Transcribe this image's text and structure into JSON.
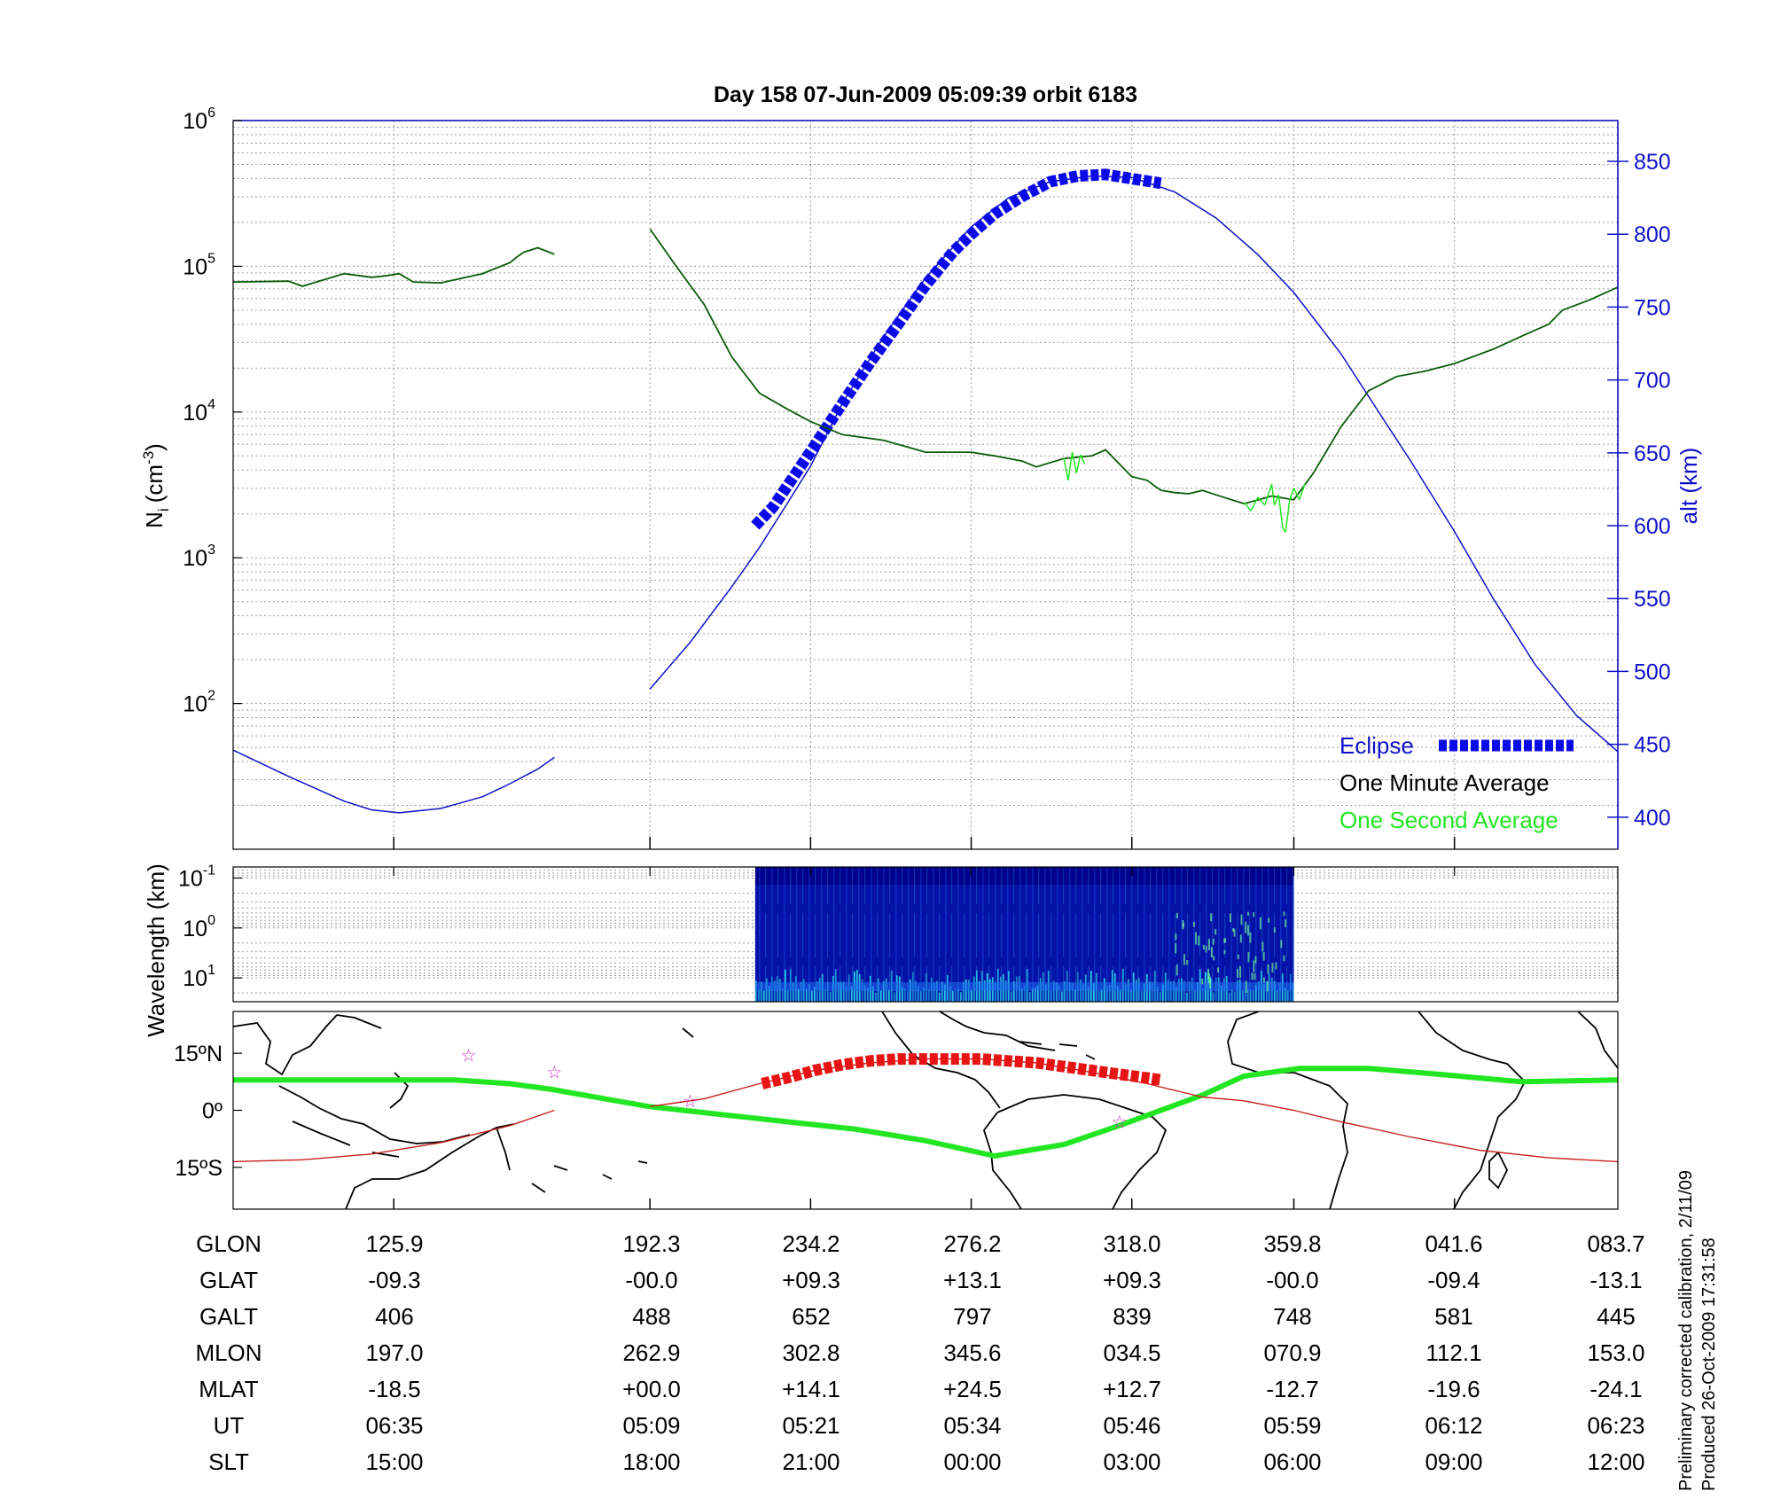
{
  "title": "Day 158  07-Jun-2009 05:09:39   orbit 6183",
  "footer": {
    "line1": "Preliminary corrected calibration, 2/11/09",
    "line2": "Produced 26-Oct-2009 17:31:58"
  },
  "colors": {
    "alt": "#1010c8",
    "eclipse": "#0a0ae6",
    "minute": "#0a5a0a",
    "second": "#22e622",
    "ground_track": "#c81e1e",
    "track_eclipse": "#e61414",
    "star": "#c832c8"
  },
  "chart_data": [
    {
      "type": "line",
      "id": "density_altitude",
      "ylabel_base": "N",
      "ylabel_sub": "i",
      "ylabel_unit": "(cm",
      "ylabel_sup": "-3",
      "y2label": "alt (km)",
      "y_scale": "log",
      "ylim": [
        10,
        1000000
      ],
      "y_ticks": [
        {
          "base": "10",
          "exp": "2",
          "value": 100
        },
        {
          "base": "10",
          "exp": "3",
          "value": 1000
        },
        {
          "base": "10",
          "exp": "4",
          "value": 10000
        },
        {
          "base": "10",
          "exp": "5",
          "value": 100000
        },
        {
          "base": "10",
          "exp": "6",
          "value": 1000000
        }
      ],
      "y2lim": [
        378,
        878
      ],
      "y2_ticks": [
        "400",
        "450",
        "500",
        "550",
        "600",
        "650",
        "700",
        "750",
        "800",
        "850"
      ],
      "x_range": [
        0,
        1
      ],
      "x_ticks": [
        0.116,
        0.301,
        0.417,
        0.533,
        0.649,
        0.766,
        0.882
      ],
      "grid": true,
      "legend_position": "bottom-right",
      "legend": [
        {
          "label": "Eclipse",
          "color_key": "eclipse"
        },
        {
          "label": "One Minute Average",
          "color_key": "black"
        },
        {
          "label": "One Second Average",
          "color_key": "second"
        }
      ],
      "series": [
        {
          "name": "alt",
          "axis": "right",
          "segments": [
            [
              [
                0.0,
                446
              ],
              [
                0.04,
                428
              ],
              [
                0.08,
                411
              ],
              [
                0.1,
                405
              ],
              [
                0.12,
                403
              ],
              [
                0.15,
                406
              ],
              [
                0.18,
                414
              ],
              [
                0.2,
                423
              ],
              [
                0.22,
                433
              ],
              [
                0.232,
                441
              ]
            ],
            [
              [
                0.301,
                488
              ],
              [
                0.33,
                520
              ],
              [
                0.36,
                558
              ],
              [
                0.38,
                585
              ],
              [
                0.4,
                615
              ],
              [
                0.417,
                641
              ],
              [
                0.44,
                684
              ],
              [
                0.47,
                730
              ],
              [
                0.5,
                770
              ],
              [
                0.533,
                805
              ],
              [
                0.56,
                825
              ],
              [
                0.59,
                836
              ],
              [
                0.62,
                840
              ],
              [
                0.649,
                839
              ],
              [
                0.68,
                829
              ],
              [
                0.71,
                811
              ],
              [
                0.74,
                786
              ],
              [
                0.766,
                760
              ],
              [
                0.8,
                718
              ],
              [
                0.83,
                674
              ],
              [
                0.85,
                645
              ],
              [
                0.882,
                596
              ],
              [
                0.91,
                550
              ],
              [
                0.94,
                505
              ],
              [
                0.97,
                470
              ],
              [
                1.0,
                445
              ]
            ]
          ]
        },
        {
          "name": "Eclipse",
          "axis": "right",
          "points": [
            [
              0.377,
              600
            ],
            [
              0.39,
              613
            ],
            [
              0.405,
              634
            ],
            [
              0.42,
              655
            ],
            [
              0.44,
              684
            ],
            [
              0.46,
              712
            ],
            [
              0.48,
              738
            ],
            [
              0.5,
              765
            ],
            [
              0.52,
              788
            ],
            [
              0.533,
              800
            ],
            [
              0.55,
              814
            ],
            [
              0.57,
              826
            ],
            [
              0.59,
              836
            ],
            [
              0.61,
              840
            ],
            [
              0.63,
              841
            ],
            [
              0.65,
              838
            ],
            [
              0.67,
              835
            ]
          ]
        },
        {
          "name": "One Minute Average",
          "axis": "left",
          "segments": [
            [
              [
                0.0,
                78000
              ],
              [
                0.04,
                79000
              ],
              [
                0.05,
                73000
              ],
              [
                0.08,
                89000
              ],
              [
                0.1,
                84000
              ],
              [
                0.11,
                86000
              ],
              [
                0.12,
                89000
              ],
              [
                0.13,
                78000
              ],
              [
                0.15,
                77000
              ],
              [
                0.18,
                89000
              ],
              [
                0.2,
                106000
              ],
              [
                0.205,
                116000
              ],
              [
                0.21,
                125000
              ],
              [
                0.22,
                134000
              ],
              [
                0.232,
                121000
              ]
            ],
            [
              [
                0.301,
                180000
              ],
              [
                0.32,
                100000
              ],
              [
                0.34,
                55000
              ],
              [
                0.36,
                24000
              ],
              [
                0.38,
                13500
              ],
              [
                0.4,
                10500
              ],
              [
                0.417,
                8600
              ],
              [
                0.44,
                7000
              ],
              [
                0.47,
                6400
              ],
              [
                0.5,
                5300
              ],
              [
                0.533,
                5300
              ],
              [
                0.55,
                5000
              ],
              [
                0.56,
                4800
              ],
              [
                0.57,
                4600
              ],
              [
                0.58,
                4200
              ],
              [
                0.6,
                4800
              ],
              [
                0.61,
                4900
              ],
              [
                0.62,
                5000
              ],
              [
                0.63,
                5500
              ],
              [
                0.64,
                4400
              ],
              [
                0.649,
                3600
              ],
              [
                0.66,
                3400
              ],
              [
                0.67,
                2900
              ],
              [
                0.68,
                2800
              ],
              [
                0.69,
                2750
              ],
              [
                0.7,
                2900
              ],
              [
                0.71,
                2700
              ],
              [
                0.73,
                2350
              ],
              [
                0.75,
                2650
              ],
              [
                0.766,
                2500
              ],
              [
                0.78,
                3800
              ],
              [
                0.8,
                7900
              ],
              [
                0.82,
                14000
              ],
              [
                0.84,
                17500
              ],
              [
                0.86,
                19000
              ],
              [
                0.882,
                21500
              ],
              [
                0.91,
                27000
              ],
              [
                0.93,
                33000
              ],
              [
                0.95,
                40000
              ],
              [
                0.96,
                50000
              ],
              [
                0.98,
                59000
              ],
              [
                1.0,
                72000
              ]
            ]
          ]
        },
        {
          "name": "One Second Average",
          "axis": "left",
          "points": [
            [
              0.6,
              4800
            ],
            [
              0.603,
              3400
            ],
            [
              0.606,
              5300
            ],
            [
              0.609,
              3800
            ],
            [
              0.612,
              5100
            ],
            [
              0.615,
              4400
            ],
            [
              0.73,
              2400
            ],
            [
              0.735,
              2100
            ],
            [
              0.74,
              2600
            ],
            [
              0.745,
              2300
            ],
            [
              0.75,
              3200
            ],
            [
              0.752,
              2300
            ],
            [
              0.755,
              2700
            ],
            [
              0.758,
              1600
            ],
            [
              0.76,
              1500
            ],
            [
              0.763,
              2500
            ],
            [
              0.766,
              3000
            ],
            [
              0.77,
              2500
            ],
            [
              0.774,
              3200
            ]
          ]
        }
      ]
    },
    {
      "type": "heatmap",
      "id": "spectrogram",
      "ylabel": "Wavelength (km)",
      "y_scale": "log",
      "ylim": [
        0.06,
        30
      ],
      "y_ticks": [
        {
          "base": "10",
          "exp": "-1",
          "value": 0.1
        },
        {
          "base": "10",
          "exp": "0",
          "value": 1
        },
        {
          "base": "10",
          "exp": "1",
          "value": 10
        }
      ],
      "x_range": [
        0,
        1
      ],
      "data_x_range": [
        0.377,
        0.766
      ],
      "colormap": [
        "#00008c",
        "#0a28c8",
        "#1e6ef0",
        "#28d2e6",
        "#6ef0a0"
      ],
      "grid": true
    },
    {
      "type": "scatter",
      "id": "map",
      "y_ticks": [
        "15ºN",
        "0º",
        "15ºS"
      ],
      "y_tick_values": [
        15,
        0,
        -15
      ],
      "ylim": [
        -26,
        26
      ],
      "x_range": [
        0,
        1
      ],
      "series": [
        {
          "name": "footpoint",
          "color_key": "second",
          "points": [
            [
              0.0,
              8
            ],
            [
              0.1,
              8
            ],
            [
              0.16,
              8
            ],
            [
              0.2,
              7
            ],
            [
              0.23,
              5.5
            ],
            [
              0.3,
              1
            ],
            [
              0.35,
              -1
            ],
            [
              0.4,
              -3
            ],
            [
              0.45,
              -5
            ],
            [
              0.5,
              -8
            ],
            [
              0.55,
              -12
            ],
            [
              0.6,
              -9
            ],
            [
              0.64,
              -4
            ],
            [
              0.67,
              0
            ],
            [
              0.7,
              4
            ],
            [
              0.73,
              9
            ],
            [
              0.77,
              11
            ],
            [
              0.82,
              11
            ],
            [
              0.87,
              9.5
            ],
            [
              0.93,
              7.5
            ],
            [
              1.0,
              8
            ]
          ]
        },
        {
          "name": "track",
          "color_key": "ground_track",
          "points": [
            [
              0.0,
              -13.5
            ],
            [
              0.05,
              -13
            ],
            [
              0.1,
              -11.5
            ],
            [
              0.15,
              -8.5
            ],
            [
              0.2,
              -4
            ],
            [
              0.232,
              0
            ]
          ]
        },
        {
          "name": "track2",
          "color_key": "ground_track",
          "points": [
            [
              0.301,
              1
            ],
            [
              0.34,
              3
            ],
            [
              0.38,
              7
            ],
            [
              0.42,
              10.5
            ],
            [
              0.46,
              12.5
            ],
            [
              0.5,
              13.5
            ],
            [
              0.54,
              13.5
            ],
            [
              0.58,
              12.5
            ],
            [
              0.62,
              10
            ],
            [
              0.66,
              7
            ],
            [
              0.7,
              3.5
            ],
            [
              0.73,
              2.5
            ],
            [
              0.766,
              0
            ],
            [
              0.8,
              -3
            ],
            [
              0.85,
              -7
            ],
            [
              0.9,
              -10.5
            ],
            [
              0.95,
              -12.5
            ],
            [
              1.0,
              -13.5
            ]
          ]
        },
        {
          "name": "eclipse_track",
          "color_key": "track_eclipse",
          "points": [
            [
              0.382,
              7
            ],
            [
              0.4,
              8.5
            ],
            [
              0.42,
              10.5
            ],
            [
              0.44,
              12
            ],
            [
              0.46,
              13
            ],
            [
              0.48,
              13.5
            ],
            [
              0.5,
              13.5
            ],
            [
              0.52,
              13.5
            ],
            [
              0.54,
              13.5
            ],
            [
              0.56,
              13
            ],
            [
              0.58,
              12.5
            ],
            [
              0.6,
              11.5
            ],
            [
              0.62,
              10.5
            ],
            [
              0.64,
              9.5
            ],
            [
              0.66,
              8.5
            ],
            [
              0.67,
              8
            ]
          ]
        },
        {
          "name": "stars",
          "color_key": "star",
          "points": [
            [
              0.17,
              14.5
            ],
            [
              0.232,
              10
            ],
            [
              0.33,
              2.5
            ],
            [
              0.64,
              -3
            ]
          ]
        }
      ]
    }
  ],
  "table": {
    "headers": [
      "GLON",
      "GLAT",
      "GALT",
      "MLON",
      "MLAT",
      "UT",
      "SLT"
    ],
    "columns": [
      [
        "125.9",
        "-09.3",
        "406",
        "197.0",
        "-18.5",
        "06:35",
        "15:00"
      ],
      [
        "192.3",
        "-00.0",
        "488",
        "262.9",
        "+00.0",
        "05:09",
        "18:00"
      ],
      [
        "234.2",
        "+09.3",
        "652",
        "302.8",
        "+14.1",
        "05:21",
        "21:00"
      ],
      [
        "276.2",
        "+13.1",
        "797",
        "345.6",
        "+24.5",
        "05:34",
        "00:00"
      ],
      [
        "318.0",
        "+09.3",
        "839",
        "034.5",
        "+12.7",
        "05:46",
        "03:00"
      ],
      [
        "359.8",
        "-00.0",
        "748",
        "070.9",
        "-12.7",
        "05:59",
        "06:00"
      ],
      [
        "041.6",
        "-09.4",
        "581",
        "112.1",
        "-19.6",
        "06:12",
        "09:00"
      ],
      [
        "083.7",
        "-13.1",
        "445",
        "153.0",
        "-24.1",
        "06:23",
        "12:00"
      ]
    ]
  }
}
